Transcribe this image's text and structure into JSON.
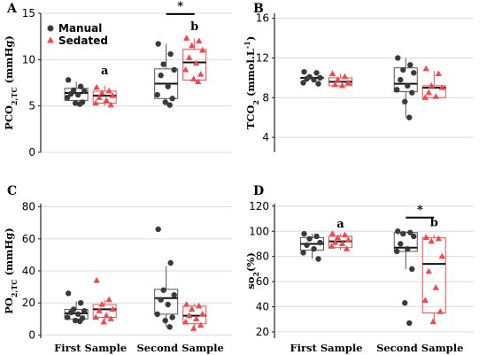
{
  "colors": {
    "manual": "#3a3a3a",
    "sedated": "#f0494e",
    "grid": "#dcdcdc",
    "box_manual": "#555555"
  },
  "legend": {
    "items": [
      {
        "label": "Manual",
        "shape": "circle",
        "color": "#3a3a3a"
      },
      {
        "label": "Sedated",
        "shape": "triangle",
        "color": "#f0494e"
      }
    ]
  },
  "categories": [
    "First Sample",
    "Second Sample"
  ],
  "chart_data": [
    {
      "panel": "A",
      "type": "box",
      "ylabel": "PCO2,TC (mmHg)",
      "ylabel_parts": {
        "main": "PCO",
        "sub": "2,TC",
        "rest": " (mmHg)"
      },
      "ylim": [
        0,
        15
      ],
      "yticks": [
        0,
        5,
        10,
        15
      ],
      "annotations": [
        {
          "text": "a",
          "category": "First Sample",
          "series": "Sedated",
          "y": 8.4
        },
        {
          "text": "b",
          "category": "Second Sample",
          "series": "Sedated",
          "y": 13.2
        },
        {
          "text": "*",
          "category": "Second Sample",
          "y": 15.2,
          "bracket": true
        }
      ],
      "series": [
        {
          "name": "Manual",
          "boxes": [
            {
              "category": "First Sample",
              "q1": 5.6,
              "median": 6.4,
              "q3": 6.9,
              "whisker_low": 5.2,
              "whisker_high": 7.6,
              "points": [
                7.8,
                7.1,
                6.7,
                6.6,
                6.3,
                6.2,
                5.9,
                5.4,
                5.3,
                5.2
              ]
            },
            {
              "category": "Second Sample",
              "q1": 5.8,
              "median": 7.4,
              "q3": 9.0,
              "whisker_low": 5.1,
              "whisker_high": 11.7,
              "points": [
                11.7,
                10.6,
                9.5,
                8.9,
                8.3,
                7.1,
                6.2,
                5.8,
                5.4,
                5.1
              ]
            }
          ]
        },
        {
          "name": "Sedated",
          "boxes": [
            {
              "category": "First Sample",
              "q1": 5.3,
              "median": 6.1,
              "q3": 6.6,
              "whisker_low": 5.0,
              "whisker_high": 7.2,
              "points": [
                7.0,
                6.6,
                6.4,
                6.1,
                5.9,
                5.6,
                5.3,
                5.1
              ]
            },
            {
              "category": "Second Sample",
              "q1": 7.8,
              "median": 9.7,
              "q3": 11.1,
              "whisker_low": 7.6,
              "whisker_high": 12.3,
              "points": [
                12.3,
                12.0,
                11.5,
                11.0,
                10.2,
                9.6,
                8.9,
                8.4,
                7.9,
                7.6
              ]
            }
          ]
        }
      ]
    },
    {
      "panel": "B",
      "type": "box",
      "ylabel": "TCO2 (mmol.L-1)",
      "ylabel_parts": {
        "main": "TCO",
        "sub": "2",
        "rest": " (mmol.L",
        "sup": "-1",
        "tail": ")"
      },
      "ylim": [
        2.5,
        16.5
      ],
      "yticks": [
        4,
        8,
        12,
        16
      ],
      "annotations": [],
      "series": [
        {
          "name": "Manual",
          "boxes": [
            {
              "category": "First Sample",
              "q1": 10.0,
              "median": 10.0,
              "q3": 10.0,
              "whisker_low": 10.0,
              "whisker_high": 10.0,
              "points": [
                10.6,
                10.5,
                10.1,
                10.0,
                9.9,
                9.8,
                9.5,
                9.4
              ]
            },
            {
              "category": "Second Sample",
              "q1": 8.6,
              "median": 9.4,
              "q3": 11.0,
              "whisker_low": 6.0,
              "whisker_high": 12.0,
              "points": [
                12.0,
                11.3,
                10.8,
                10.5,
                9.8,
                9.2,
                8.8,
                8.5,
                7.6,
                6.0
              ]
            }
          ]
        },
        {
          "name": "Sedated",
          "boxes": [
            {
              "category": "First Sample",
              "q1": 9.2,
              "median": 9.6,
              "q3": 10.0,
              "whisker_low": 9.2,
              "whisker_high": 10.4,
              "points": [
                10.4,
                10.1,
                9.8,
                9.5,
                9.3,
                9.2
              ]
            },
            {
              "category": "Second Sample",
              "q1": 8.0,
              "median": 9.0,
              "q3": 9.2,
              "whisker_low": 8.0,
              "whisker_high": 10.7,
              "points": [
                10.9,
                10.4,
                9.2,
                9.0,
                8.5,
                8.1,
                8.0
              ]
            }
          ]
        }
      ]
    },
    {
      "panel": "C",
      "type": "box",
      "ylabel": "PO2,TC (mmHg)",
      "ylabel_parts": {
        "main": "PO",
        "sub": "2,TC",
        "rest": " (mmHg)"
      },
      "ylim": [
        -2,
        82
      ],
      "yticks": [
        0,
        20,
        40,
        60,
        80
      ],
      "annotations": [],
      "series": [
        {
          "name": "Manual",
          "boxes": [
            {
              "category": "First Sample",
              "q1": 10.0,
              "median": 13.5,
              "q3": 16.0,
              "whisker_low": 8.5,
              "whisker_high": 21.0,
              "points": [
                26.0,
                20.0,
                16.0,
                15.0,
                14.0,
                13.0,
                11.0,
                10.5,
                9.0,
                8.5
              ]
            },
            {
              "category": "Second Sample",
              "q1": 13.0,
              "median": 23.0,
              "q3": 28.5,
              "whisker_low": 5.0,
              "whisker_high": 43.0,
              "points": [
                66.0,
                45.0,
                28.0,
                25.0,
                22.0,
                19.0,
                13.0,
                11.0,
                9.0,
                5.0
              ]
            }
          ]
        },
        {
          "name": "Sedated",
          "boxes": [
            {
              "category": "First Sample",
              "q1": 11.0,
              "median": 16.0,
              "q3": 19.0,
              "whisker_low": 8.0,
              "whisker_high": 22.0,
              "points": [
                34.0,
                22.0,
                19.0,
                16.0,
                15.0,
                12.0,
                11.0,
                10.0,
                8.0
              ]
            },
            {
              "category": "Second Sample",
              "q1": 7.0,
              "median": 12.0,
              "q3": 18.0,
              "whisker_low": 4.0,
              "whisker_high": 19.5,
              "points": [
                19.0,
                18.0,
                16.0,
                13.0,
                12.0,
                10.0,
                8.0,
                6.0,
                4.0
              ]
            }
          ]
        }
      ]
    },
    {
      "panel": "D",
      "type": "box",
      "ylabel": "so2(%)",
      "ylabel_parts": {
        "main": "so",
        "sub": "2",
        "rest": "(%)"
      },
      "ylim": [
        15,
        122
      ],
      "yticks": [
        20,
        40,
        60,
        80,
        100,
        120
      ],
      "annotations": [
        {
          "text": "a",
          "category": "First Sample",
          "series": "Sedated",
          "y": 103
        },
        {
          "text": "b",
          "category": "Second Sample",
          "series": "Sedated",
          "y": 104
        },
        {
          "text": "*",
          "category": "Second Sample",
          "y": 113,
          "bracket": true
        }
      ],
      "series": [
        {
          "name": "Manual",
          "boxes": [
            {
              "category": "First Sample",
              "q1": 85.0,
              "median": 90.0,
              "q3": 95.0,
              "whisker_low": 78.0,
              "whisker_high": 98.0,
              "points": [
                98.0,
                96.0,
                94.0,
                91.0,
                89.0,
                86.0,
                83.0,
                78.0
              ]
            },
            {
              "category": "Second Sample",
              "q1": 84.0,
              "median": 87.0,
              "q3": 99.0,
              "whisker_low": 70.0,
              "whisker_high": 100.0,
              "points": [
                100.0,
                99.0,
                98.0,
                96.0,
                90.0,
                86.0,
                84.0,
                70.0,
                43.0,
                27.0
              ]
            }
          ]
        },
        {
          "name": "Sedated",
          "boxes": [
            {
              "category": "First Sample",
              "q1": 87.0,
              "median": 92.0,
              "q3": 96.0,
              "whisker_low": 85.0,
              "whisker_high": 98.0,
              "points": [
                98.0,
                97.0,
                95.0,
                93.0,
                91.0,
                90.0,
                88.0,
                86.0
              ]
            },
            {
              "category": "Second Sample",
              "q1": 35.0,
              "median": 74.0,
              "q3": 95.0,
              "whisker_low": 28.0,
              "whisker_high": 97.0,
              "points": [
                95.0,
                94.0,
                92.0,
                80.0,
                68.0,
                55.0,
                45.0,
                36.0,
                28.0
              ]
            }
          ]
        }
      ]
    }
  ]
}
